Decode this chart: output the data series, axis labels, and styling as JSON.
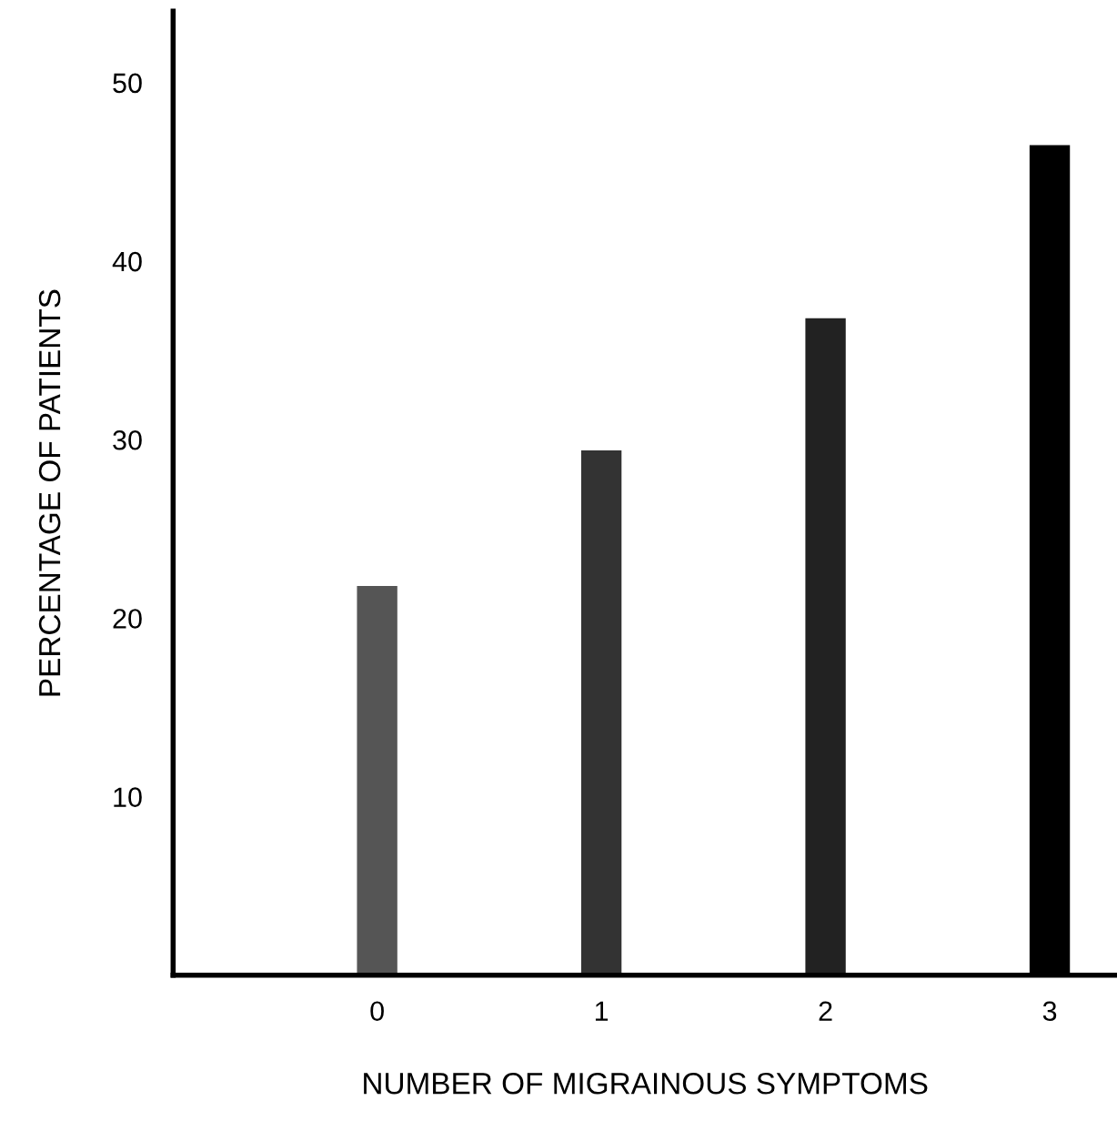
{
  "chart_data": {
    "type": "bar",
    "xlabel": "NUMBER OF MIGRAINOUS SYMPTOMS",
    "ylabel": "PERCENTAGE OF PATIENTS",
    "categories": [
      "0",
      "1",
      "2",
      "3"
    ],
    "values": [
      21.8,
      29.4,
      36.8,
      46.5
    ],
    "colors": [
      "#555555",
      "#333333",
      "#222222",
      "#000000"
    ],
    "ylim": [
      0,
      54
    ],
    "yticks": [
      10,
      20,
      30,
      40,
      50
    ],
    "grid": false,
    "legend": false
  }
}
